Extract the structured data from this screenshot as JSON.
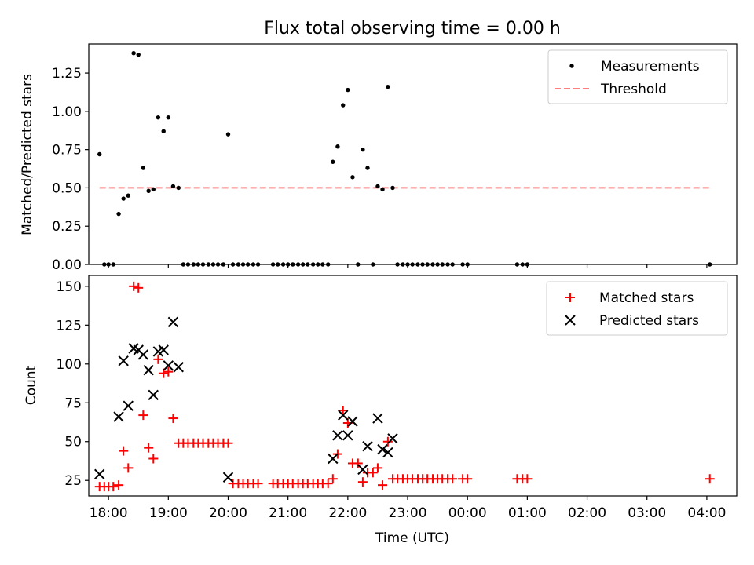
{
  "chart_data": [
    {
      "type": "scatter",
      "title": "Flux total observing time = 0.00 h",
      "xlabel": "",
      "ylabel": "Matched/Predicted stars",
      "xlim": [
        17.67,
        28.5
      ],
      "ylim": [
        0,
        1.44
      ],
      "yticks": [
        0,
        0.25,
        0.5,
        0.75,
        1.0,
        1.25
      ],
      "ytick_labels": [
        "0.00",
        "0.25",
        "0.50",
        "0.75",
        "1.00",
        "1.25"
      ],
      "legend": {
        "location": "upper right",
        "entries": [
          "Measurements",
          "Threshold"
        ]
      },
      "threshold": {
        "name": "Threshold",
        "value": 0.5,
        "x_range": [
          17.85,
          28.05
        ],
        "color": "#ff7f7f"
      },
      "series": [
        {
          "name": "Measurements",
          "marker": "dot",
          "color": "#000000",
          "x": [
            17.85,
            17.93,
            18.0,
            18.08,
            18.17,
            18.25,
            18.33,
            18.42,
            18.5,
            18.58,
            18.67,
            18.75,
            18.83,
            18.92,
            19.0,
            19.08,
            19.17,
            19.25,
            19.33,
            19.42,
            19.5,
            19.58,
            19.67,
            19.75,
            19.83,
            19.92,
            20.0,
            20.08,
            20.17,
            20.25,
            20.33,
            20.42,
            20.5,
            20.75,
            20.83,
            20.92,
            21.0,
            21.08,
            21.17,
            21.25,
            21.33,
            21.42,
            21.5,
            21.58,
            21.67,
            21.75,
            21.83,
            21.92,
            22.0,
            22.08,
            22.17,
            22.25,
            22.33,
            22.42,
            22.5,
            22.58,
            22.67,
            22.75,
            22.83,
            22.92,
            23.0,
            23.08,
            23.17,
            23.25,
            23.33,
            23.42,
            23.5,
            23.58,
            23.67,
            23.75,
            23.92,
            24.0,
            24.83,
            24.92,
            25.0,
            28.05
          ],
          "y": [
            0.72,
            0.0,
            0.0,
            0.0,
            0.33,
            0.43,
            0.45,
            1.38,
            1.37,
            0.63,
            0.48,
            0.49,
            0.96,
            0.87,
            0.96,
            0.51,
            0.5,
            0.0,
            0.0,
            0.0,
            0.0,
            0.0,
            0.0,
            0.0,
            0.0,
            0.0,
            0.85,
            0.0,
            0.0,
            0.0,
            0.0,
            0.0,
            0.0,
            0.0,
            0.0,
            0.0,
            0.0,
            0.0,
            0.0,
            0.0,
            0.0,
            0.0,
            0.0,
            0.0,
            0.0,
            0.67,
            0.77,
            1.04,
            1.14,
            0.57,
            0.0,
            0.75,
            0.63,
            0.0,
            0.51,
            0.49,
            1.16,
            0.5,
            0.0,
            0.0,
            0.0,
            0.0,
            0.0,
            0.0,
            0.0,
            0.0,
            0.0,
            0.0,
            0.0,
            0.0,
            0.0,
            0.0,
            0.0,
            0.0,
            0.0,
            0.0
          ]
        }
      ]
    },
    {
      "type": "scatter",
      "title": "",
      "xlabel": "Time (UTC)",
      "ylabel": "Count",
      "xlim": [
        17.67,
        28.5
      ],
      "ylim": [
        15,
        157
      ],
      "yticks": [
        25,
        50,
        75,
        100,
        125,
        150
      ],
      "ytick_labels": [
        "25",
        "50",
        "75",
        "100",
        "125",
        "150"
      ],
      "xticks": [
        18,
        19,
        20,
        21,
        22,
        23,
        24,
        25,
        26,
        27,
        28
      ],
      "xtick_labels": [
        "18:00",
        "19:00",
        "20:00",
        "21:00",
        "22:00",
        "23:00",
        "00:00",
        "01:00",
        "02:00",
        "03:00",
        "04:00"
      ],
      "legend": {
        "location": "upper right",
        "entries": [
          "Matched stars",
          "Predicted stars"
        ]
      },
      "series": [
        {
          "name": "Matched stars",
          "marker": "plus",
          "color": "#ff0000",
          "x": [
            17.85,
            17.93,
            18.0,
            18.08,
            18.17,
            18.25,
            18.33,
            18.42,
            18.5,
            18.58,
            18.67,
            18.75,
            18.83,
            18.92,
            19.0,
            19.08,
            19.17,
            19.25,
            19.33,
            19.42,
            19.5,
            19.58,
            19.67,
            19.75,
            19.83,
            19.92,
            20.0,
            20.08,
            20.17,
            20.25,
            20.33,
            20.42,
            20.5,
            20.75,
            20.83,
            20.92,
            21.0,
            21.08,
            21.17,
            21.25,
            21.33,
            21.42,
            21.5,
            21.58,
            21.67,
            21.75,
            21.83,
            21.92,
            22.0,
            22.08,
            22.17,
            22.25,
            22.33,
            22.42,
            22.5,
            22.58,
            22.67,
            22.75,
            22.83,
            22.92,
            23.0,
            23.08,
            23.17,
            23.25,
            23.33,
            23.42,
            23.5,
            23.58,
            23.67,
            23.75,
            23.92,
            24.0,
            24.83,
            24.92,
            25.0,
            28.05
          ],
          "y": [
            21,
            21,
            21,
            21,
            22,
            44,
            33,
            150,
            149,
            67,
            46,
            39,
            103,
            94,
            95,
            65,
            49,
            49,
            49,
            49,
            49,
            49,
            49,
            49,
            49,
            49,
            49,
            23,
            23,
            23,
            23,
            23,
            23,
            23,
            23,
            23,
            23,
            23,
            23,
            23,
            23,
            23,
            23,
            23,
            23,
            26,
            42,
            70,
            62,
            36,
            36,
            24,
            30,
            30,
            33,
            22,
            50,
            26,
            26,
            26,
            26,
            26,
            26,
            26,
            26,
            26,
            26,
            26,
            26,
            26,
            26,
            26,
            26,
            26,
            26,
            26
          ]
        },
        {
          "name": "Predicted stars",
          "marker": "x",
          "color": "#000000",
          "x": [
            17.85,
            18.17,
            18.25,
            18.33,
            18.42,
            18.5,
            18.58,
            18.67,
            18.75,
            18.83,
            18.92,
            19.0,
            19.08,
            19.17,
            20.0,
            21.75,
            21.83,
            21.92,
            22.0,
            22.08,
            22.25,
            22.33,
            22.5,
            22.58,
            22.67,
            22.75
          ],
          "y": [
            29,
            66,
            102,
            73,
            110,
            109,
            106,
            96,
            80,
            108,
            109,
            99,
            127,
            98,
            27,
            39,
            54,
            67,
            54,
            63,
            32,
            47,
            65,
            45,
            43,
            52
          ]
        }
      ]
    }
  ]
}
